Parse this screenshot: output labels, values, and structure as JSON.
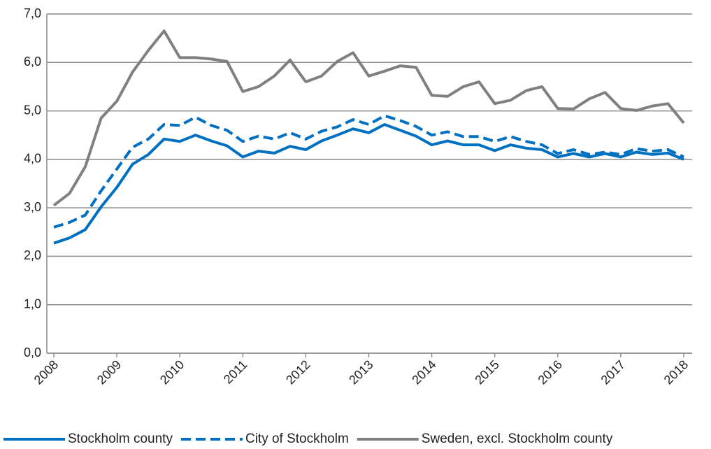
{
  "chart_data": {
    "type": "line",
    "categories": [
      "2008",
      null,
      null,
      null,
      "2009",
      null,
      null,
      null,
      "2010",
      null,
      null,
      null,
      "2011",
      null,
      null,
      null,
      "2012",
      null,
      null,
      null,
      "2013",
      null,
      null,
      null,
      "2014",
      null,
      null,
      null,
      "2015",
      null,
      null,
      null,
      "2016",
      null,
      null,
      null,
      "2017",
      null,
      null,
      null,
      "2018"
    ],
    "series": [
      {
        "name": "Stockholm county",
        "color": "#0070c0",
        "style": "solid",
        "values": [
          2.27,
          2.38,
          2.55,
          3.02,
          3.42,
          3.9,
          4.1,
          4.42,
          4.37,
          4.5,
          4.38,
          4.28,
          4.05,
          4.17,
          4.13,
          4.27,
          4.2,
          4.38,
          4.5,
          4.63,
          4.55,
          4.72,
          4.6,
          4.48,
          4.3,
          4.38,
          4.3,
          4.3,
          4.18,
          4.3,
          4.23,
          4.2,
          4.05,
          4.12,
          4.05,
          4.12,
          4.05,
          4.15,
          4.1,
          4.13,
          4.0
        ]
      },
      {
        "name": "City of Stockholm",
        "color": "#0070c0",
        "style": "dashed",
        "values": [
          2.6,
          2.7,
          2.85,
          3.35,
          3.8,
          4.25,
          4.42,
          4.72,
          4.7,
          4.87,
          4.7,
          4.6,
          4.37,
          4.48,
          4.42,
          4.55,
          4.42,
          4.58,
          4.67,
          4.82,
          4.72,
          4.9,
          4.8,
          4.68,
          4.5,
          4.57,
          4.47,
          4.47,
          4.37,
          4.47,
          4.37,
          4.3,
          4.12,
          4.2,
          4.1,
          4.15,
          4.1,
          4.22,
          4.17,
          4.2,
          4.05
        ]
      },
      {
        "name": "Sweden, excl. Stockholm county",
        "color": "#808080",
        "style": "solid",
        "values": [
          3.05,
          3.3,
          3.85,
          4.85,
          5.2,
          5.8,
          6.25,
          6.65,
          6.1,
          6.1,
          6.07,
          6.02,
          5.4,
          5.5,
          5.72,
          6.05,
          5.6,
          5.72,
          6.02,
          6.2,
          5.72,
          5.82,
          5.93,
          5.9,
          5.32,
          5.3,
          5.5,
          5.6,
          5.15,
          5.22,
          5.42,
          5.5,
          5.05,
          5.04,
          5.25,
          5.38,
          5.05,
          5.01,
          5.1,
          5.15,
          4.75
        ]
      }
    ],
    "ylim": [
      0,
      7
    ],
    "yticks": [
      {
        "value": 0,
        "label": "0,0"
      },
      {
        "value": 1,
        "label": "1,0"
      },
      {
        "value": 2,
        "label": "2,0"
      },
      {
        "value": 3,
        "label": "3,0"
      },
      {
        "value": 4,
        "label": "4,0"
      },
      {
        "value": 5,
        "label": "5,0"
      },
      {
        "value": 6,
        "label": "6,0"
      },
      {
        "value": 7,
        "label": "7,0"
      }
    ],
    "grid": true,
    "legend": "bottom"
  }
}
